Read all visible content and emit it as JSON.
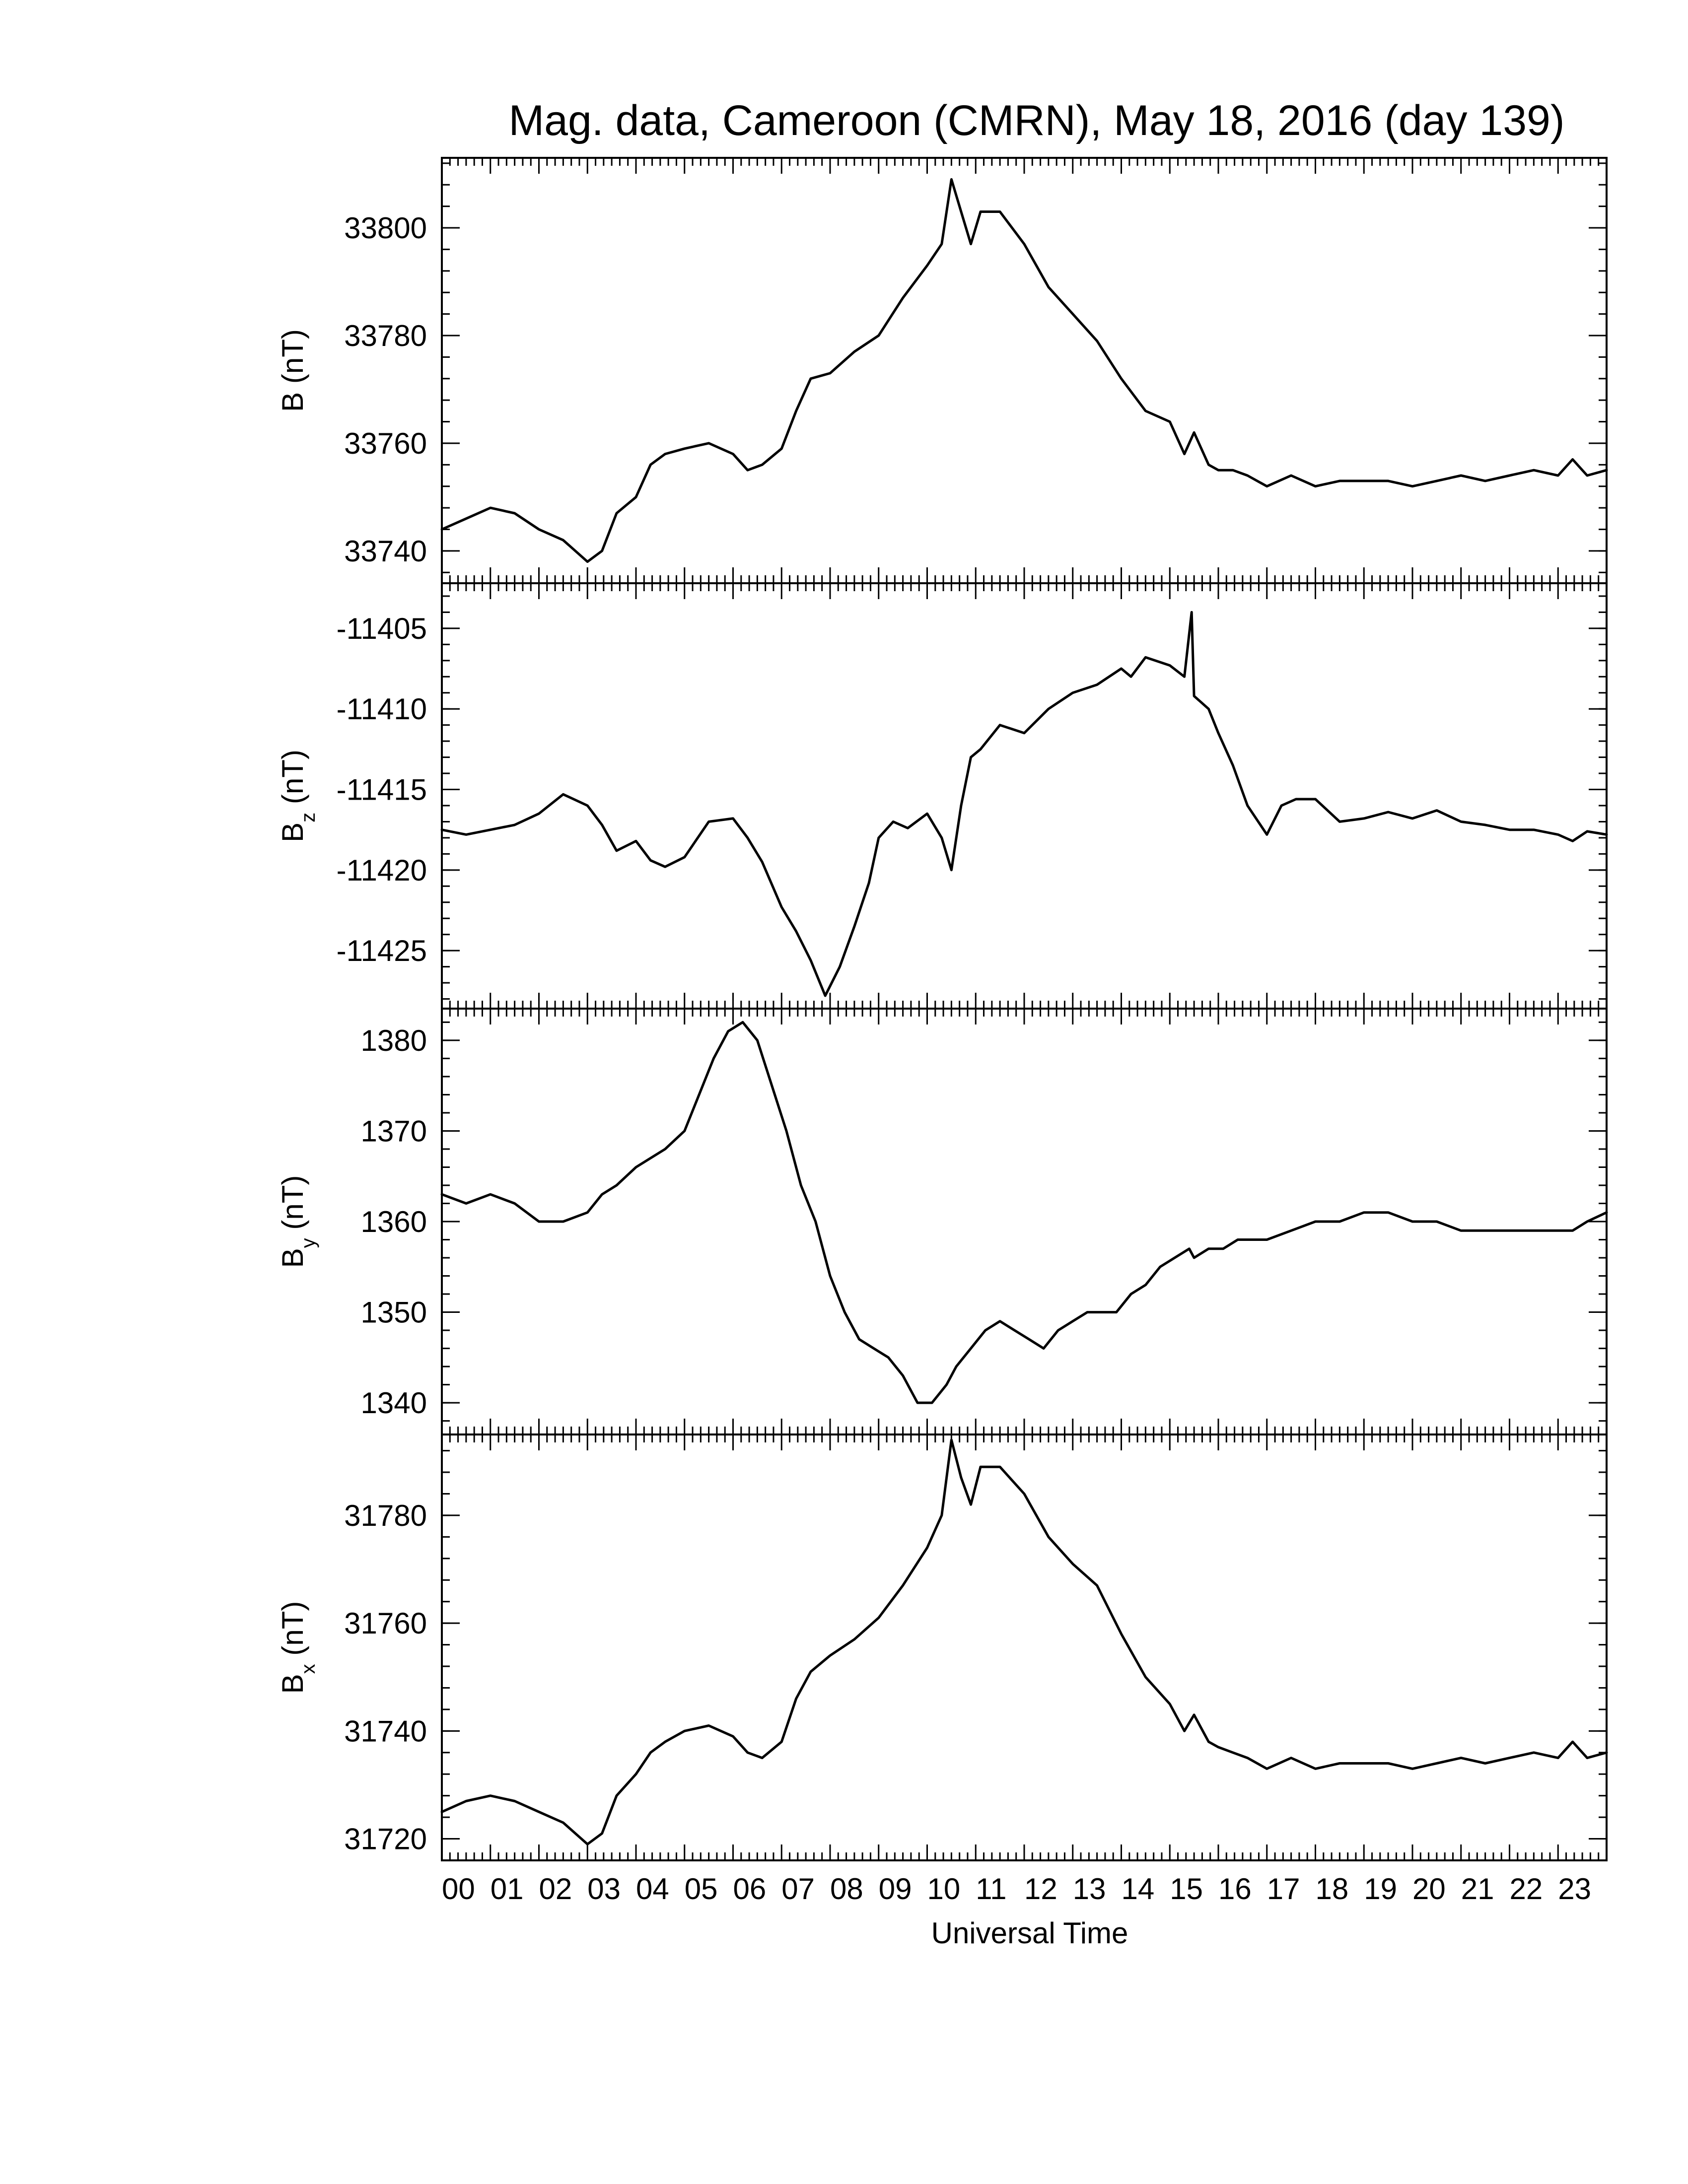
{
  "chart_data": {
    "type": "line",
    "title": "Mag. data, Cameroon (CMRN), May 18, 2016 (day 139)",
    "xlabel": "Universal Time",
    "x_unit": "hours UT",
    "xlim": [
      0,
      24
    ],
    "x_tick_labels": [
      "00",
      "01",
      "02",
      "03",
      "04",
      "05",
      "06",
      "07",
      "08",
      "09",
      "10",
      "11",
      "12",
      "13",
      "14",
      "15",
      "16",
      "17",
      "18",
      "19",
      "20",
      "21",
      "22",
      "23"
    ],
    "grid": false,
    "panels": [
      {
        "ylabel_main": "B",
        "ylabel_sub": "",
        "ylabel_unit": " (nT)",
        "ylim": [
          33734,
          33813
        ],
        "y_ticks": [
          33740,
          33760,
          33780,
          33800
        ],
        "y_tick_labels": [
          "33740",
          "33760",
          "33780",
          "33800"
        ],
        "series": [
          {
            "x": [
              0,
              0.5,
              1.0,
              1.5,
              2.0,
              2.5,
              3.0,
              3.3,
              3.6,
              4.0,
              4.3,
              4.6,
              5.0,
              5.5,
              6.0,
              6.3,
              6.6,
              7.0,
              7.3,
              7.6,
              8.0,
              8.5,
              9.0,
              9.5,
              10.0,
              10.3,
              10.5,
              10.7,
              10.9,
              11.1,
              11.5,
              12.0,
              12.5,
              13.0,
              13.5,
              14.0,
              14.5,
              15.0,
              15.3,
              15.5,
              15.8,
              16.0,
              16.3,
              16.6,
              17.0,
              17.5,
              18.0,
              18.5,
              19.0,
              19.5,
              20.0,
              20.5,
              21.0,
              21.5,
              22.0,
              22.5,
              23.0,
              23.3,
              23.6,
              24.0
            ],
            "y": [
              33744,
              33746,
              33748,
              33747,
              33744,
              33742,
              33738,
              33740,
              33747,
              33750,
              33756,
              33758,
              33759,
              33760,
              33758,
              33755,
              33756,
              33759,
              33766,
              33772,
              33773,
              33777,
              33780,
              33787,
              33793,
              33797,
              33809,
              33803,
              33797,
              33803,
              33803,
              33797,
              33789,
              33784,
              33779,
              33772,
              33766,
              33764,
              33758,
              33762,
              33756,
              33755,
              33755,
              33754,
              33752,
              33754,
              33752,
              33753,
              33753,
              33753,
              33752,
              33753,
              33754,
              33753,
              33754,
              33755,
              33754,
              33757,
              33754,
              33755
            ]
          }
        ]
      },
      {
        "ylabel_main": "B",
        "ylabel_sub": "z",
        "ylabel_unit": " (nT)",
        "ylim": [
          -11428.6,
          -11402.2
        ],
        "y_ticks": [
          -11425,
          -11420,
          -11415,
          -11410,
          -11405
        ],
        "y_tick_labels": [
          "-11425",
          "-11420",
          "-11415",
          "-11410",
          "-11405"
        ],
        "series": [
          {
            "x": [
              0,
              0.5,
              1.0,
              1.5,
              2.0,
              2.5,
              3.0,
              3.3,
              3.6,
              4.0,
              4.3,
              4.6,
              5.0,
              5.5,
              6.0,
              6.3,
              6.6,
              7.0,
              7.3,
              7.6,
              7.9,
              8.2,
              8.5,
              8.8,
              9.0,
              9.3,
              9.6,
              10.0,
              10.3,
              10.5,
              10.7,
              10.9,
              11.1,
              11.5,
              12.0,
              12.5,
              13.0,
              13.5,
              14.0,
              14.2,
              14.5,
              15.0,
              15.3,
              15.45,
              15.5,
              15.8,
              16.0,
              16.3,
              16.6,
              17.0,
              17.3,
              17.6,
              18.0,
              18.5,
              19.0,
              19.5,
              20.0,
              20.5,
              21.0,
              21.5,
              22.0,
              22.5,
              23.0,
              23.3,
              23.6,
              24.0
            ],
            "y": [
              -11417.5,
              -11417.8,
              -11417.5,
              -11417.2,
              -11416.5,
              -11415.3,
              -11416.0,
              -11417.2,
              -11418.8,
              -11418.2,
              -11419.4,
              -11419.8,
              -11419.2,
              -11417.0,
              -11416.8,
              -11418.0,
              -11419.5,
              -11422.3,
              -11423.8,
              -11425.6,
              -11427.8,
              -11426.0,
              -11423.5,
              -11420.8,
              -11418.0,
              -11417.0,
              -11417.4,
              -11416.5,
              -11418.0,
              -11420.0,
              -11416.0,
              -11413.0,
              -11412.5,
              -11411.0,
              -11411.5,
              -11410.0,
              -11409.0,
              -11408.5,
              -11407.5,
              -11408.0,
              -11406.8,
              -11407.3,
              -11408.0,
              -11404.0,
              -11409.2,
              -11410.0,
              -11411.5,
              -11413.5,
              -11416.0,
              -11417.8,
              -11416.0,
              -11415.6,
              -11415.6,
              -11417.0,
              -11416.8,
              -11416.4,
              -11416.8,
              -11416.3,
              -11417.0,
              -11417.2,
              -11417.5,
              -11417.5,
              -11417.8,
              -11418.2,
              -11417.6,
              -11417.8
            ]
          }
        ]
      },
      {
        "ylabel_main": "B",
        "ylabel_sub": "y",
        "ylabel_unit": " (nT)",
        "ylim": [
          1336.5,
          1383.5
        ],
        "y_ticks": [
          1340,
          1350,
          1360,
          1370,
          1380
        ],
        "y_tick_labels": [
          "1340",
          "1350",
          "1360",
          "1370",
          "1380"
        ],
        "series": [
          {
            "x": [
              0,
              0.5,
              1.0,
              1.5,
              2.0,
              2.5,
              3.0,
              3.3,
              3.6,
              4.0,
              4.3,
              4.6,
              5.0,
              5.3,
              5.6,
              5.9,
              6.2,
              6.5,
              6.8,
              7.1,
              7.4,
              7.7,
              8.0,
              8.3,
              8.6,
              8.9,
              9.2,
              9.5,
              9.8,
              10.1,
              10.4,
              10.6,
              10.9,
              11.2,
              11.5,
              11.8,
              12.1,
              12.4,
              12.7,
              13.0,
              13.3,
              13.6,
              13.9,
              14.2,
              14.5,
              14.8,
              15.1,
              15.4,
              15.5,
              15.8,
              16.1,
              16.4,
              16.7,
              17.0,
              17.5,
              18.0,
              18.5,
              19.0,
              19.5,
              20.0,
              20.5,
              21.0,
              21.5,
              22.0,
              22.5,
              23.0,
              23.3,
              23.6,
              24.0
            ],
            "y": [
              1363,
              1362,
              1363,
              1362,
              1360,
              1360,
              1361,
              1363,
              1364,
              1366,
              1367,
              1368,
              1370,
              1374,
              1378,
              1381,
              1382,
              1380,
              1375,
              1370,
              1364,
              1360,
              1354,
              1350,
              1347,
              1346,
              1345,
              1343,
              1340,
              1340,
              1342,
              1344,
              1346,
              1348,
              1349,
              1348,
              1347,
              1346,
              1348,
              1349,
              1350,
              1350,
              1350,
              1352,
              1353,
              1355,
              1356,
              1357,
              1356,
              1357,
              1357,
              1358,
              1358,
              1358,
              1359,
              1360,
              1360,
              1361,
              1361,
              1360,
              1360,
              1359,
              1359,
              1359,
              1359,
              1359,
              1359,
              1360,
              1361
            ]
          }
        ]
      },
      {
        "ylabel_main": "B",
        "ylabel_sub": "x",
        "ylabel_unit": " (nT)",
        "ylim": [
          31716,
          31795
        ],
        "y_ticks": [
          31720,
          31740,
          31760,
          31780
        ],
        "y_tick_labels": [
          "31720",
          "31740",
          "31760",
          "31780"
        ],
        "series": [
          {
            "x": [
              0,
              0.5,
              1.0,
              1.5,
              2.0,
              2.5,
              3.0,
              3.3,
              3.6,
              4.0,
              4.3,
              4.6,
              5.0,
              5.5,
              6.0,
              6.3,
              6.6,
              7.0,
              7.3,
              7.6,
              8.0,
              8.5,
              9.0,
              9.5,
              10.0,
              10.3,
              10.5,
              10.7,
              10.9,
              11.1,
              11.5,
              12.0,
              12.5,
              13.0,
              13.5,
              14.0,
              14.5,
              15.0,
              15.3,
              15.5,
              15.8,
              16.0,
              16.3,
              16.6,
              17.0,
              17.5,
              18.0,
              18.5,
              19.0,
              19.5,
              20.0,
              20.5,
              21.0,
              21.5,
              22.0,
              22.5,
              23.0,
              23.3,
              23.6,
              24.0
            ],
            "y": [
              31725,
              31727,
              31728,
              31727,
              31725,
              31723,
              31719,
              31721,
              31728,
              31732,
              31736,
              31738,
              31740,
              31741,
              31739,
              31736,
              31735,
              31738,
              31746,
              31751,
              31754,
              31757,
              31761,
              31767,
              31774,
              31780,
              31794,
              31787,
              31782,
              31789,
              31789,
              31784,
              31776,
              31771,
              31767,
              31758,
              31750,
              31745,
              31740,
              31743,
              31738,
              31737,
              31736,
              31735,
              31733,
              31735,
              31733,
              31734,
              31734,
              31734,
              31733,
              31734,
              31735,
              31734,
              31735,
              31736,
              31735,
              31738,
              31735,
              31736
            ]
          }
        ]
      }
    ]
  }
}
